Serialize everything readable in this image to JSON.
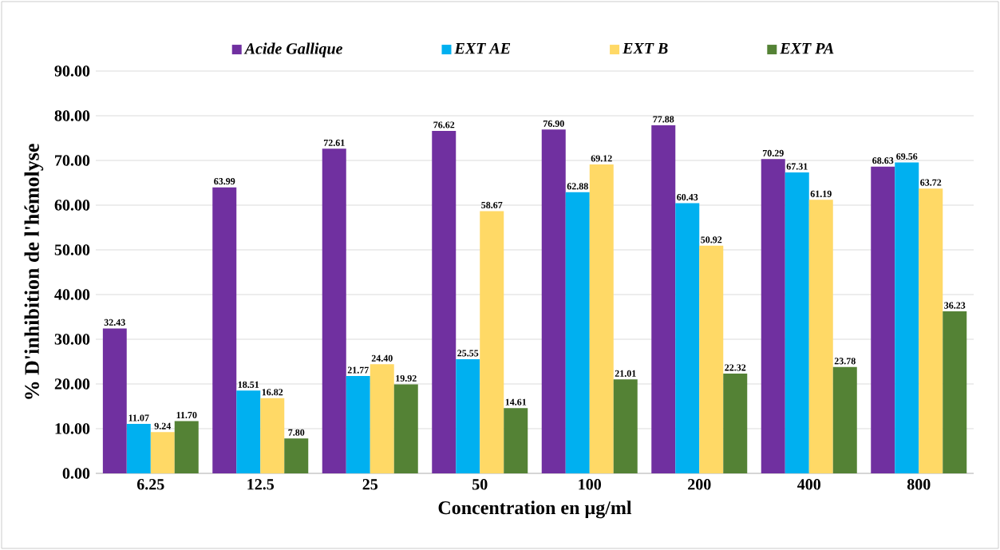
{
  "chart_data": {
    "type": "bar",
    "xlabel": "Concentration en µg/ml",
    "ylabel": "% D'inhibition de l'hémolyse",
    "categories": [
      "6.25",
      "12.5",
      "25",
      "50",
      "100",
      "200",
      "400",
      "800"
    ],
    "series": [
      {
        "name": "Acide Gallique",
        "color": "#7030a0",
        "values": [
          32.43,
          63.99,
          72.61,
          76.62,
          76.9,
          77.88,
          70.29,
          68.63
        ],
        "value_labels": [
          "32.43",
          "63.99",
          "72.61",
          "76.62",
          "76.90",
          "77.88",
          "70.29",
          "68.63"
        ]
      },
      {
        "name": "EXT AE",
        "color": "#00b0f0",
        "values": [
          11.07,
          18.51,
          21.77,
          25.55,
          62.88,
          60.43,
          67.31,
          69.56
        ],
        "value_labels": [
          "11.07",
          "18.51",
          "21.77",
          "25.55",
          "62.88",
          "60.43",
          "67.31",
          "69.56"
        ]
      },
      {
        "name": "EXT B",
        "color": "#ffd966",
        "values": [
          9.24,
          16.82,
          24.4,
          58.67,
          69.12,
          50.92,
          61.19,
          63.72
        ],
        "value_labels": [
          "9.24",
          "16.82",
          "24.40",
          "58.67",
          "69.12",
          "50.92",
          "61.19",
          "63.72"
        ]
      },
      {
        "name": "EXT PA",
        "color": "#548235",
        "values": [
          11.7,
          7.8,
          19.92,
          14.61,
          21.01,
          22.32,
          23.78,
          36.23
        ],
        "value_labels": [
          "11.70",
          "7.80",
          "19.92",
          "14.61",
          "21.01",
          "22.32",
          "23.78",
          "36.23"
        ]
      }
    ],
    "ylim": [
      0,
      90
    ],
    "yticks": [
      {
        "value": 0,
        "label": "0.00"
      },
      {
        "value": 10,
        "label": "10.00"
      },
      {
        "value": 20,
        "label": "20.00"
      },
      {
        "value": 30,
        "label": "30.00"
      },
      {
        "value": 40,
        "label": "40.00"
      },
      {
        "value": 50,
        "label": "50.00"
      },
      {
        "value": 60,
        "label": "60.00"
      },
      {
        "value": 70,
        "label": "70.00"
      },
      {
        "value": 80,
        "label": "80.00"
      },
      {
        "value": 90,
        "label": "90.00"
      }
    ],
    "grid": "y",
    "legend": "top"
  }
}
